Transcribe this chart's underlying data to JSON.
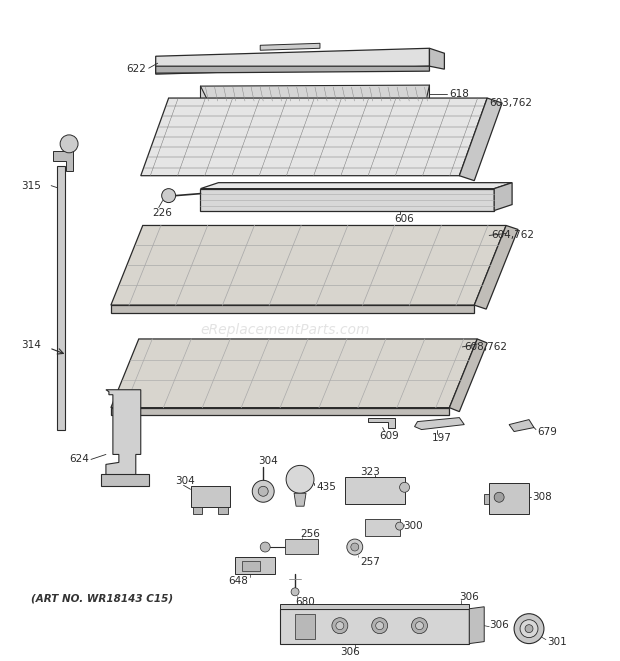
{
  "background_color": "#ffffff",
  "watermark": "eReplacementParts.com",
  "art_no": "(ART NO. WR18143 C15)",
  "line_color": "#2a2a2a",
  "fill_light": "#e8e8e8",
  "fill_mid": "#d0d0d0",
  "fill_dark": "#a8a8a8",
  "label_fontsize": 7.5,
  "figw": 6.2,
  "figh": 6.61,
  "dpi": 100
}
